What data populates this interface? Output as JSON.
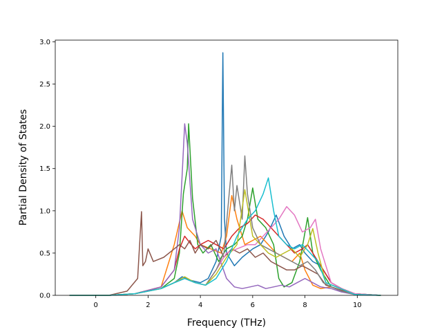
{
  "chart_data": {
    "type": "line",
    "title": "",
    "xlabel": "Frequency (THz)",
    "ylabel": "Partial Density of States",
    "xlim": [
      -1.55,
      11.55
    ],
    "ylim": [
      0,
      3.02
    ],
    "xticks": [
      0,
      2,
      4,
      6,
      8,
      10
    ],
    "yticks": [
      0.0,
      0.5,
      1.0,
      1.5,
      2.0,
      2.5,
      3.0
    ],
    "xtick_labels": [
      "0",
      "2",
      "4",
      "6",
      "8",
      "10"
    ],
    "ytick_labels": [
      "0.0",
      "0.5",
      "1.0",
      "1.5",
      "2.0",
      "2.5",
      "3.0"
    ],
    "grid": false,
    "legend": "none",
    "series": [
      {
        "color": "#1f77b4",
        "x": [
          -1.0,
          0.5,
          1.5,
          2.5,
          3.0,
          3.3,
          3.6,
          4.0,
          4.3,
          4.6,
          4.8,
          4.86,
          4.92,
          5.0,
          5.3,
          5.6,
          6.0,
          6.3,
          6.6,
          6.9,
          7.2,
          7.5,
          7.8,
          8.0,
          8.3,
          8.6,
          9.0,
          9.4,
          9.9,
          10.9
        ],
        "y": [
          0,
          0,
          0.02,
          0.08,
          0.15,
          0.22,
          0.18,
          0.15,
          0.2,
          0.4,
          0.7,
          2.87,
          0.9,
          0.5,
          0.35,
          0.45,
          0.55,
          0.6,
          0.75,
          0.95,
          0.7,
          0.55,
          0.6,
          0.5,
          0.4,
          0.35,
          0.15,
          0.08,
          0.02,
          0
        ]
      },
      {
        "color": "#ff7f0e",
        "x": [
          -1.0,
          0.5,
          1.5,
          2.5,
          3.0,
          3.3,
          3.5,
          3.8,
          4.0,
          4.4,
          4.8,
          5.0,
          5.2,
          5.4,
          5.7,
          6.0,
          6.3,
          6.6,
          6.9,
          7.2,
          7.5,
          7.8,
          8.0,
          8.3,
          8.6,
          9.0,
          9.4,
          9.9,
          10.9
        ],
        "y": [
          0,
          0,
          0.02,
          0.1,
          0.6,
          1.0,
          0.8,
          0.7,
          0.6,
          0.55,
          0.5,
          0.7,
          1.18,
          0.9,
          0.6,
          0.65,
          0.7,
          0.6,
          0.5,
          0.45,
          0.4,
          0.5,
          0.3,
          0.12,
          0.08,
          0.1,
          0.05,
          0.01,
          0
        ]
      },
      {
        "color": "#2ca02c",
        "x": [
          -1.0,
          0.5,
          1.5,
          2.5,
          3.0,
          3.2,
          3.35,
          3.5,
          3.55,
          3.7,
          3.9,
          4.1,
          4.4,
          4.7,
          5.0,
          5.3,
          5.6,
          5.8,
          6.0,
          6.2,
          6.5,
          6.8,
          7.0,
          7.2,
          7.5,
          7.8,
          8.1,
          8.3,
          8.6,
          9.0,
          9.4,
          9.9,
          10.9
        ],
        "y": [
          0,
          0,
          0.02,
          0.08,
          0.2,
          0.5,
          1.2,
          1.5,
          2.03,
          1.15,
          0.6,
          0.5,
          0.6,
          0.4,
          0.55,
          0.6,
          0.7,
          0.9,
          1.27,
          0.9,
          0.8,
          0.6,
          0.2,
          0.1,
          0.15,
          0.4,
          0.92,
          0.5,
          0.3,
          0.1,
          0.06,
          0.02,
          0
        ]
      },
      {
        "color": "#d62728",
        "x": [
          -1.0,
          0.5,
          1.5,
          2.5,
          3.0,
          3.2,
          3.4,
          3.6,
          3.8,
          4.0,
          4.3,
          4.6,
          4.9,
          5.2,
          5.5,
          5.8,
          6.1,
          6.4,
          6.7,
          7.0,
          7.3,
          7.6,
          7.9,
          8.1,
          8.4,
          8.7,
          9.0,
          9.4,
          9.9,
          10.9
        ],
        "y": [
          0,
          0,
          0.02,
          0.1,
          0.3,
          0.55,
          0.7,
          0.62,
          0.55,
          0.6,
          0.65,
          0.6,
          0.55,
          0.7,
          0.8,
          0.85,
          0.95,
          0.9,
          0.8,
          0.7,
          0.6,
          0.5,
          0.55,
          0.6,
          0.45,
          0.3,
          0.15,
          0.08,
          0.02,
          0
        ]
      },
      {
        "color": "#9467bd",
        "x": [
          -1.0,
          0.5,
          1.5,
          2.5,
          3.0,
          3.2,
          3.3,
          3.4,
          3.5,
          3.7,
          4.0,
          4.3,
          4.6,
          5.0,
          5.3,
          5.6,
          5.9,
          6.2,
          6.5,
          6.8,
          7.1,
          7.4,
          7.7,
          8.0,
          8.3,
          8.6,
          9.0,
          9.4,
          9.9,
          10.9
        ],
        "y": [
          0,
          0,
          0.02,
          0.1,
          0.3,
          0.8,
          1.4,
          2.03,
          1.8,
          0.9,
          0.6,
          0.5,
          0.55,
          0.2,
          0.1,
          0.08,
          0.1,
          0.12,
          0.08,
          0.1,
          0.12,
          0.1,
          0.15,
          0.2,
          0.15,
          0.1,
          0.08,
          0.04,
          0.01,
          0
        ]
      },
      {
        "color": "#8c564b",
        "x": [
          -1.0,
          0.5,
          1.2,
          1.6,
          1.75,
          1.8,
          1.9,
          2.0,
          2.2,
          2.6,
          3.0,
          3.2,
          3.4,
          3.6,
          3.8,
          4.0,
          4.3,
          4.6,
          4.9,
          5.2,
          5.5,
          5.8,
          6.1,
          6.4,
          6.7,
          7.0,
          7.3,
          7.6,
          7.9,
          8.2,
          8.5,
          8.8,
          9.2,
          9.6,
          9.9,
          10.9
        ],
        "y": [
          0,
          0,
          0.05,
          0.2,
          0.99,
          0.35,
          0.4,
          0.55,
          0.4,
          0.45,
          0.55,
          0.6,
          0.55,
          0.65,
          0.5,
          0.6,
          0.55,
          0.65,
          0.45,
          0.55,
          0.5,
          0.55,
          0.45,
          0.5,
          0.4,
          0.35,
          0.3,
          0.3,
          0.35,
          0.3,
          0.25,
          0.12,
          0.08,
          0.04,
          0.01,
          0
        ]
      },
      {
        "color": "#e377c2",
        "x": [
          -1.0,
          0.5,
          1.5,
          2.5,
          3.0,
          3.4,
          3.8,
          4.2,
          4.6,
          5.0,
          5.4,
          5.8,
          6.1,
          6.4,
          6.7,
          7.0,
          7.3,
          7.6,
          7.9,
          8.2,
          8.4,
          8.6,
          9.0,
          9.4,
          9.9,
          10.9
        ],
        "y": [
          0,
          0,
          0.02,
          0.08,
          0.15,
          0.2,
          0.15,
          0.12,
          0.3,
          0.5,
          0.55,
          0.6,
          0.6,
          0.7,
          0.8,
          0.9,
          1.05,
          0.95,
          0.75,
          0.8,
          0.9,
          0.55,
          0.15,
          0.08,
          0.02,
          0
        ]
      },
      {
        "color": "#7f7f7f",
        "x": [
          -1.0,
          0.5,
          1.5,
          2.5,
          3.0,
          3.4,
          3.8,
          4.2,
          4.6,
          4.9,
          5.1,
          5.2,
          5.3,
          5.4,
          5.6,
          5.7,
          5.8,
          6.0,
          6.3,
          6.6,
          6.9,
          7.2,
          7.5,
          7.8,
          8.1,
          8.4,
          8.7,
          9.0,
          9.4,
          9.9,
          10.9
        ],
        "y": [
          0,
          0,
          0.02,
          0.08,
          0.15,
          0.2,
          0.15,
          0.12,
          0.3,
          0.5,
          1.2,
          1.54,
          1.0,
          1.3,
          0.9,
          1.65,
          1.2,
          0.8,
          0.6,
          0.55,
          0.5,
          0.45,
          0.4,
          0.35,
          0.4,
          0.3,
          0.15,
          0.1,
          0.05,
          0.01,
          0
        ]
      },
      {
        "color": "#bcbd22",
        "x": [
          -1.0,
          0.5,
          1.5,
          2.5,
          3.0,
          3.4,
          3.8,
          4.2,
          4.6,
          5.0,
          5.4,
          5.7,
          6.0,
          6.3,
          6.6,
          6.9,
          7.2,
          7.5,
          7.8,
          8.1,
          8.3,
          8.5,
          8.8,
          9.2,
          9.6,
          9.9,
          10.9
        ],
        "y": [
          0,
          0,
          0.02,
          0.08,
          0.15,
          0.22,
          0.15,
          0.12,
          0.25,
          0.45,
          0.6,
          1.25,
          0.7,
          0.6,
          0.5,
          0.45,
          0.5,
          0.55,
          0.45,
          0.6,
          0.79,
          0.5,
          0.15,
          0.1,
          0.05,
          0.01,
          0
        ]
      },
      {
        "color": "#17becf",
        "x": [
          -1.0,
          0.5,
          1.5,
          2.5,
          3.0,
          3.4,
          3.8,
          4.2,
          4.6,
          5.0,
          5.4,
          5.8,
          6.1,
          6.4,
          6.6,
          6.8,
          7.0,
          7.3,
          7.6,
          7.9,
          8.2,
          8.5,
          8.8,
          9.2,
          9.6,
          9.9,
          10.9
        ],
        "y": [
          0,
          0,
          0.02,
          0.08,
          0.15,
          0.2,
          0.15,
          0.12,
          0.2,
          0.4,
          0.7,
          0.9,
          1.0,
          1.2,
          1.39,
          1.0,
          0.7,
          0.6,
          0.55,
          0.6,
          0.5,
          0.4,
          0.15,
          0.1,
          0.05,
          0.01,
          0
        ]
      }
    ]
  }
}
